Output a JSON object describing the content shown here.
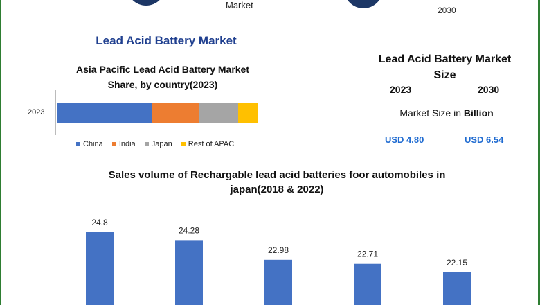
{
  "header": {
    "top_middle_text": "Market",
    "top_right_text": "2030"
  },
  "main_title": "Lead Acid Battery Market",
  "stacked": {
    "title_line1": "Asia Pacific Lead Acid Battery Market",
    "title_line2": "Share, by country(2023)",
    "year": "2023",
    "legend": [
      "China",
      "India",
      "Japan",
      "Rest of APAC"
    ]
  },
  "market_size": {
    "title_line1": "Lead Acid Battery Market",
    "title_line2": "Size",
    "year1": "2023",
    "year2": "2030",
    "unit_prefix": "Market Size in ",
    "unit_bold": "Billion",
    "value1": "USD 4.80",
    "value2": "USD 6.54"
  },
  "bar_section": {
    "title_line1": "Sales volume of Rechargable lead acid batteries foor automobiles in",
    "title_line2": "japan(2018 & 2022)"
  },
  "colors": {
    "china": "#4472c4",
    "india": "#ed7d31",
    "japan": "#a5a5a5",
    "rest": "#ffc000",
    "bar": "#4472c4",
    "title_blue": "#1f3f8f",
    "usd_blue": "#1f6bd1"
  },
  "chart_data": [
    {
      "type": "bar",
      "orientation": "horizontal-stacked",
      "title": "Asia Pacific Lead Acid Battery Market Share, by country(2023)",
      "categories": [
        "2023"
      ],
      "series": [
        {
          "name": "China",
          "values": [
            49
          ]
        },
        {
          "name": "India",
          "values": [
            25
          ]
        },
        {
          "name": "Japan",
          "values": [
            20
          ]
        },
        {
          "name": "Rest of APAC",
          "values": [
            10
          ]
        }
      ],
      "legend": "bottom",
      "grid": false
    },
    {
      "type": "bar",
      "title": "Sales volume of Rechargable lead acid batteries foor automobiles in japan(2018 & 2022)",
      "categories": [
        "",
        "",
        "",
        "",
        ""
      ],
      "values": [
        24.8,
        24.28,
        22.98,
        22.71,
        22.15
      ],
      "data_labels": [
        "24.8",
        "24.28",
        "22.98",
        "22.71",
        "22.15"
      ],
      "ylim": [
        20,
        26.4
      ],
      "grid": false
    }
  ]
}
